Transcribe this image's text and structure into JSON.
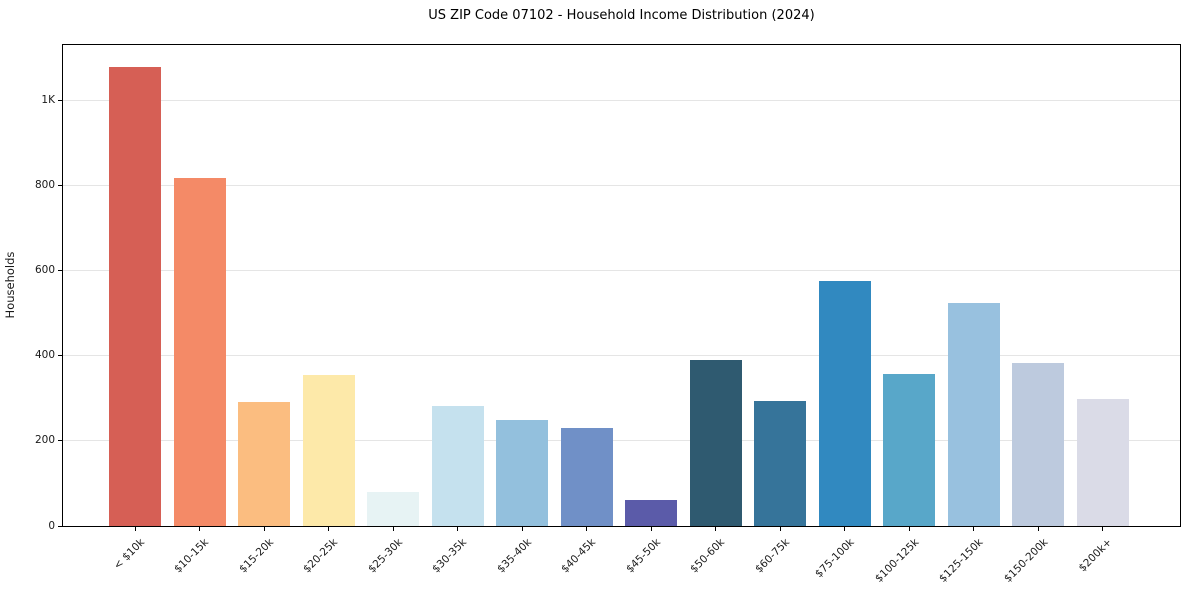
{
  "chart_data": {
    "type": "bar",
    "title": "US ZIP Code 07102 - Household Income Distribution (2024)",
    "xlabel": "",
    "ylabel": "Households",
    "categories": [
      "< $10k",
      "$10-15k",
      "$15-20k",
      "$20-25k",
      "$25-30k",
      "$30-35k",
      "$35-40k",
      "$40-45k",
      "$45-50k",
      "$50-60k",
      "$60-75k",
      "$75-100k",
      "$100-125k",
      "$125-150k",
      "$150-200k",
      "$200k+"
    ],
    "values": [
      1078,
      817,
      291,
      354,
      81,
      282,
      250,
      230,
      60,
      390,
      294,
      575,
      357,
      525,
      383,
      298
    ],
    "bar_colors": [
      "#d65f55",
      "#f48a67",
      "#fbbd80",
      "#fde9a9",
      "#e7f3f4",
      "#c5e1ee",
      "#93c0dd",
      "#7090c7",
      "#5b5ba9",
      "#2f5a70",
      "#36749a",
      "#3189c0",
      "#58a7c9",
      "#98c1df",
      "#bdcade",
      "#dadbe7"
    ],
    "ylim": [
      0,
      1130
    ],
    "yticks": [
      {
        "value": 0,
        "label": "0"
      },
      {
        "value": 200,
        "label": "200"
      },
      {
        "value": 400,
        "label": "400"
      },
      {
        "value": 600,
        "label": "600"
      },
      {
        "value": 800,
        "label": "800"
      },
      {
        "value": 1000,
        "label": "1K"
      }
    ],
    "grid": "horizontal",
    "legend": "none",
    "x_label_rotation_deg": 45
  },
  "colors": {
    "background": "#ffffff",
    "frame": "#000000",
    "grid": "#e5e5e5",
    "text": "#1a1a1a"
  }
}
